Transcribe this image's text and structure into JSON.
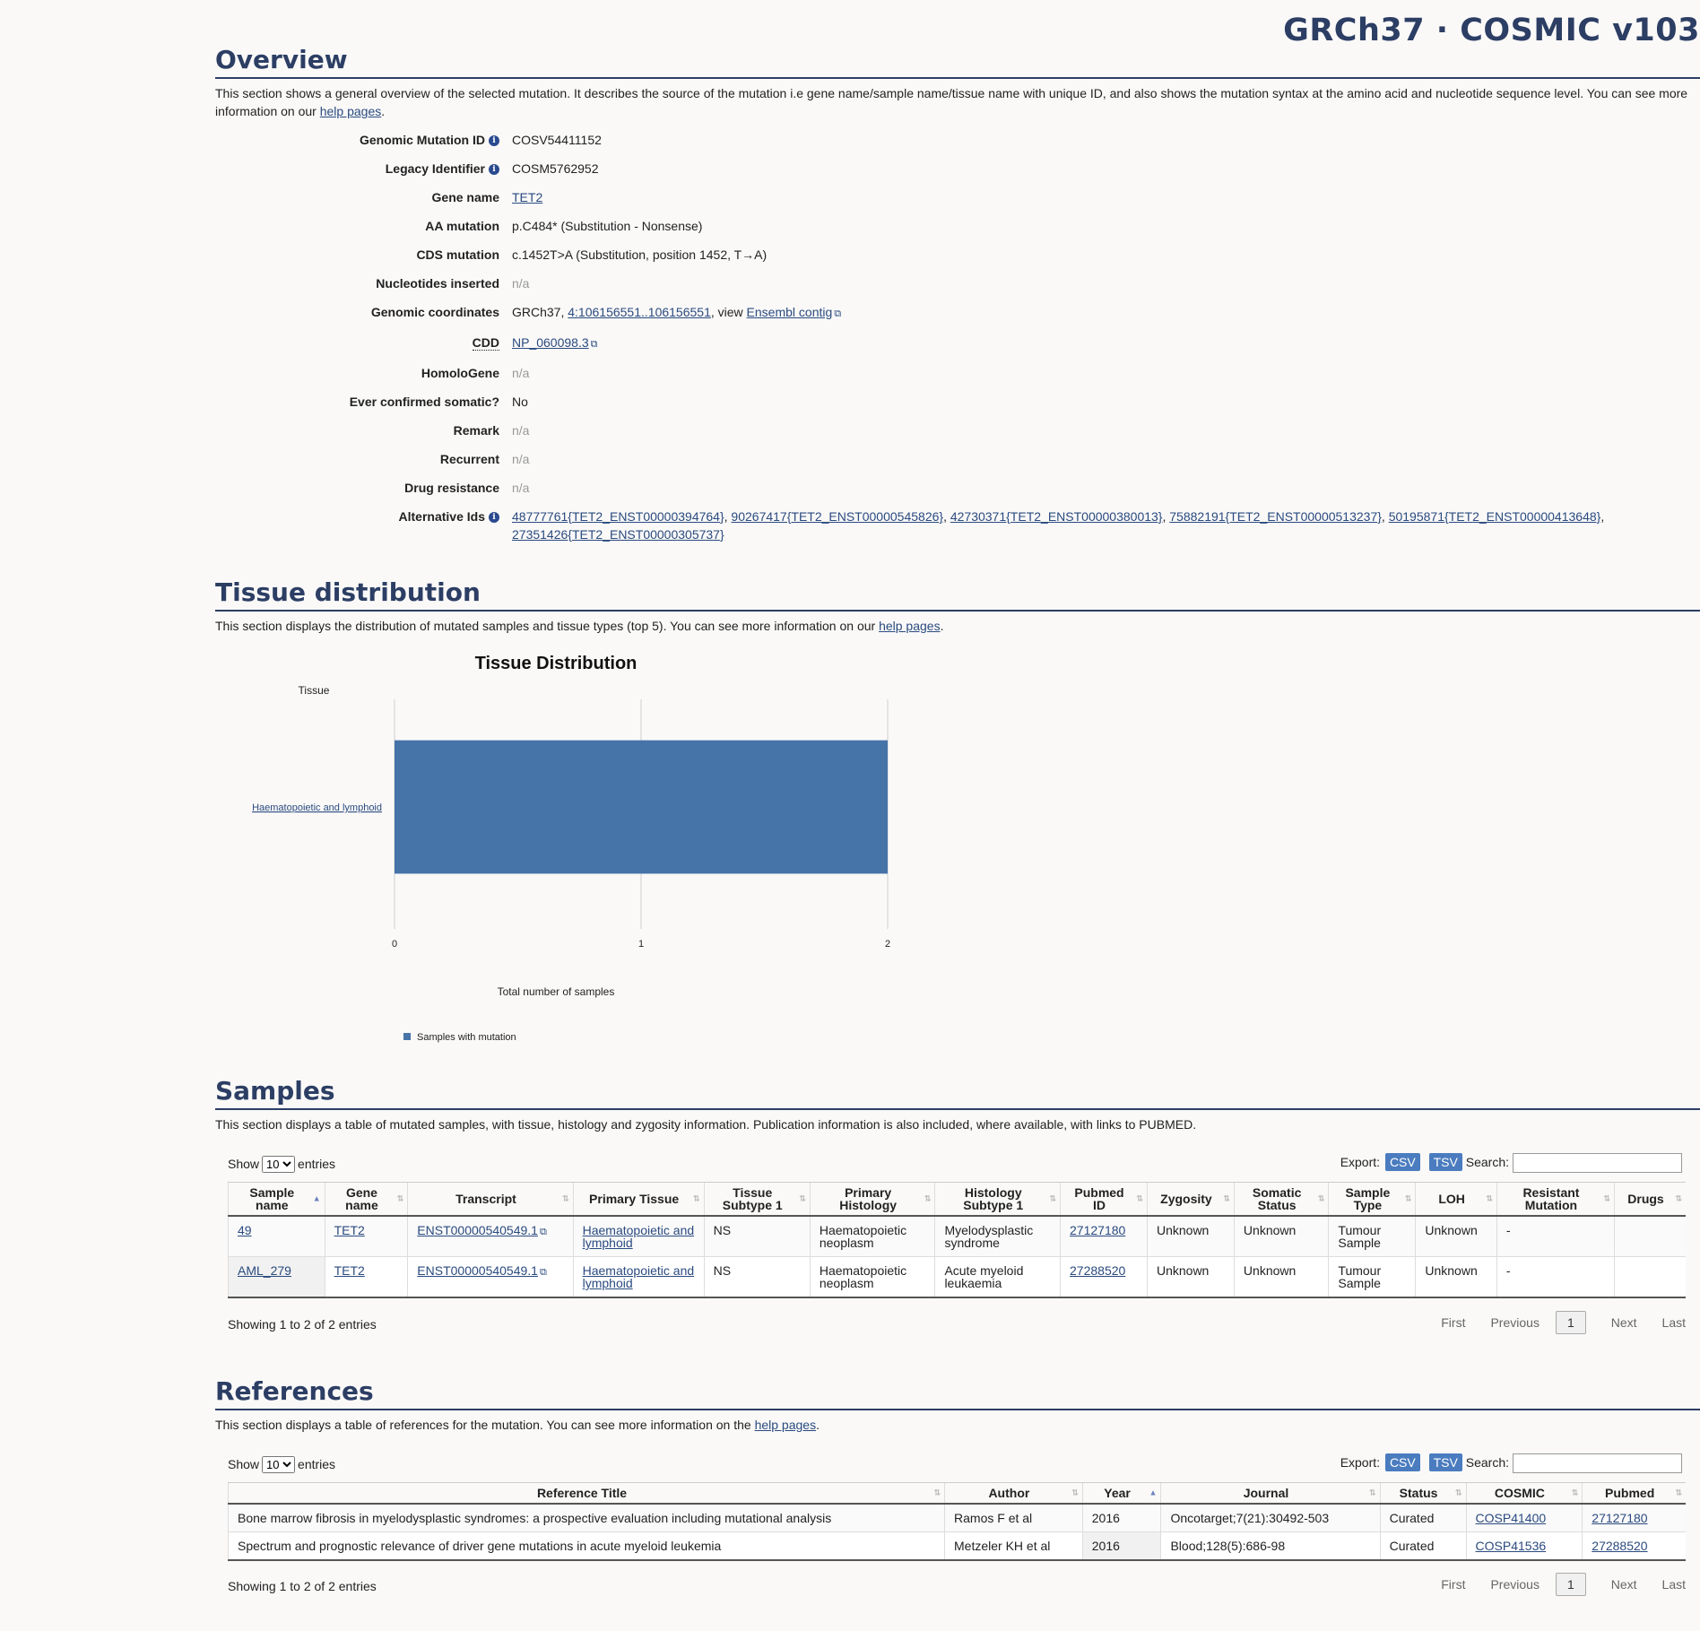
{
  "header": {
    "build_title": "GRCh37 · COSMIC v103"
  },
  "overview": {
    "heading": "Overview",
    "desc_pre": "This section shows a general overview of the selected mutation. It describes the source of the mutation i.e gene name/sample name/tissue name with unique ID, and also shows the mutation syntax at the amino acid and nucleotide sequence level. You can see more information on our ",
    "desc_link": "help pages",
    "desc_post": ".",
    "genomic_mutation_id_label": "Genomic Mutation ID",
    "genomic_mutation_id": "COSV54411152",
    "legacy_identifier_label": "Legacy Identifier",
    "legacy_identifier": "COSM5762952",
    "gene_name_label": "Gene name",
    "gene_name": "TET2",
    "aa_mutation_label": "AA mutation",
    "aa_mutation": "p.C484* (Substitution - Nonsense)",
    "cds_mutation_label": "CDS mutation",
    "cds_mutation": "c.1452T>A (Substitution, position 1452, T→A)",
    "nucleotides_inserted_label": "Nucleotides inserted",
    "nucleotides_inserted": "n/a",
    "genomic_coordinates_label": "Genomic coordinates",
    "genomic_coordinates_prefix": "GRCh37, ",
    "genomic_coordinates_link": "4:106156551..106156551",
    "genomic_coordinates_mid": ", view ",
    "genomic_coordinates_contig": "Ensembl contig",
    "cdd_label": "CDD",
    "cdd": "NP_060098.3",
    "homologene_label": "HomoloGene",
    "homologene": "n/a",
    "ever_confirmed_label": "Ever confirmed somatic?",
    "ever_confirmed": "No",
    "remark_label": "Remark",
    "remark": "n/a",
    "recurrent_label": "Recurrent",
    "recurrent": "n/a",
    "drug_resistance_label": "Drug resistance",
    "drug_resistance": "n/a",
    "alternative_ids_label": "Alternative Ids",
    "alternative_ids": [
      "48777761{TET2_ENST00000394764}",
      "90267417{TET2_ENST00000545826}",
      "42730371{TET2_ENST00000380013}",
      "75882191{TET2_ENST00000513237}",
      "50195871{TET2_ENST00000413648}",
      "27351426{TET2_ENST00000305737}"
    ]
  },
  "tissue": {
    "heading": "Tissue distribution",
    "desc_pre": "This section displays the distribution of mutated samples and tissue types (top 5). You can see more information on our ",
    "desc_link": "help pages",
    "desc_post": "."
  },
  "chart_data": {
    "type": "bar",
    "orientation": "horizontal",
    "title": "Tissue Distribution",
    "ylabel": "Tissue",
    "xlabel": "Total number of samples",
    "categories": [
      "Haematopoietic and lymphoid"
    ],
    "series": [
      {
        "name": "Samples with mutation",
        "values": [
          2
        ],
        "color": "#4673a8"
      }
    ],
    "xlim": [
      0,
      2
    ],
    "xticks": [
      "0",
      "1",
      "2"
    ],
    "grid": true,
    "legend": "bottom-left"
  },
  "samples": {
    "heading": "Samples",
    "desc": "This section displays a table of mutated samples, with tissue, histology and zygosity information. Publication information is also included, where available, with links to PUBMED.",
    "show_label": "Show",
    "entries_label": "entries",
    "page_size": "10",
    "export_label": "Export:",
    "csv": "CSV",
    "tsv": "TSV",
    "search_label": "Search:",
    "columns": [
      "Sample name",
      "Gene name",
      "Transcript",
      "Primary Tissue",
      "Tissue Subtype 1",
      "Primary Histology",
      "Histology Subtype 1",
      "Pubmed ID",
      "Zygosity",
      "Somatic Status",
      "Sample Type",
      "LOH",
      "Resistant Mutation",
      "Drugs"
    ],
    "rows": [
      [
        "49",
        "TET2",
        "ENST00000540549.1",
        "Haematopoietic and lymphoid",
        "NS",
        "Haematopoietic neoplasm",
        "Myelodysplastic syndrome",
        "27127180",
        "Unknown",
        "Unknown",
        "Tumour Sample",
        "Unknown",
        "-",
        ""
      ],
      [
        "AML_279",
        "TET2",
        "ENST00000540549.1",
        "Haematopoietic and lymphoid",
        "NS",
        "Haematopoietic neoplasm",
        "Acute myeloid leukaemia",
        "27288520",
        "Unknown",
        "Unknown",
        "Tumour Sample",
        "Unknown",
        "-",
        ""
      ]
    ],
    "showing": "Showing 1 to 2 of 2 entries",
    "pager": {
      "first": "First",
      "previous": "Previous",
      "current": "1",
      "next": "Next",
      "last": "Last"
    }
  },
  "references": {
    "heading": "References",
    "desc_pre": "This section displays a table of references for the mutation. You can see more information on the ",
    "desc_link": "help pages",
    "desc_post": ".",
    "show_label": "Show",
    "entries_label": "entries",
    "page_size": "10",
    "export_label": "Export:",
    "csv": "CSV",
    "tsv": "TSV",
    "search_label": "Search:",
    "columns": [
      "Reference Title",
      "Author",
      "Year",
      "Journal",
      "Status",
      "COSMIC",
      "Pubmed"
    ],
    "rows": [
      [
        "Bone marrow fibrosis in myelodysplastic syndromes: a prospective evaluation including mutational analysis",
        "Ramos F et al",
        "2016",
        "Oncotarget;7(21):30492-503",
        "Curated",
        "COSP41400",
        "27127180"
      ],
      [
        "Spectrum and prognostic relevance of driver gene mutations in acute myeloid leukemia",
        "Metzeler KH et al",
        "2016",
        "Blood;128(5):686-98",
        "Curated",
        "COSP41536",
        "27288520"
      ]
    ],
    "showing": "Showing 1 to 2 of 2 entries",
    "pager": {
      "first": "First",
      "previous": "Previous",
      "current": "1",
      "next": "Next",
      "last": "Last"
    }
  }
}
